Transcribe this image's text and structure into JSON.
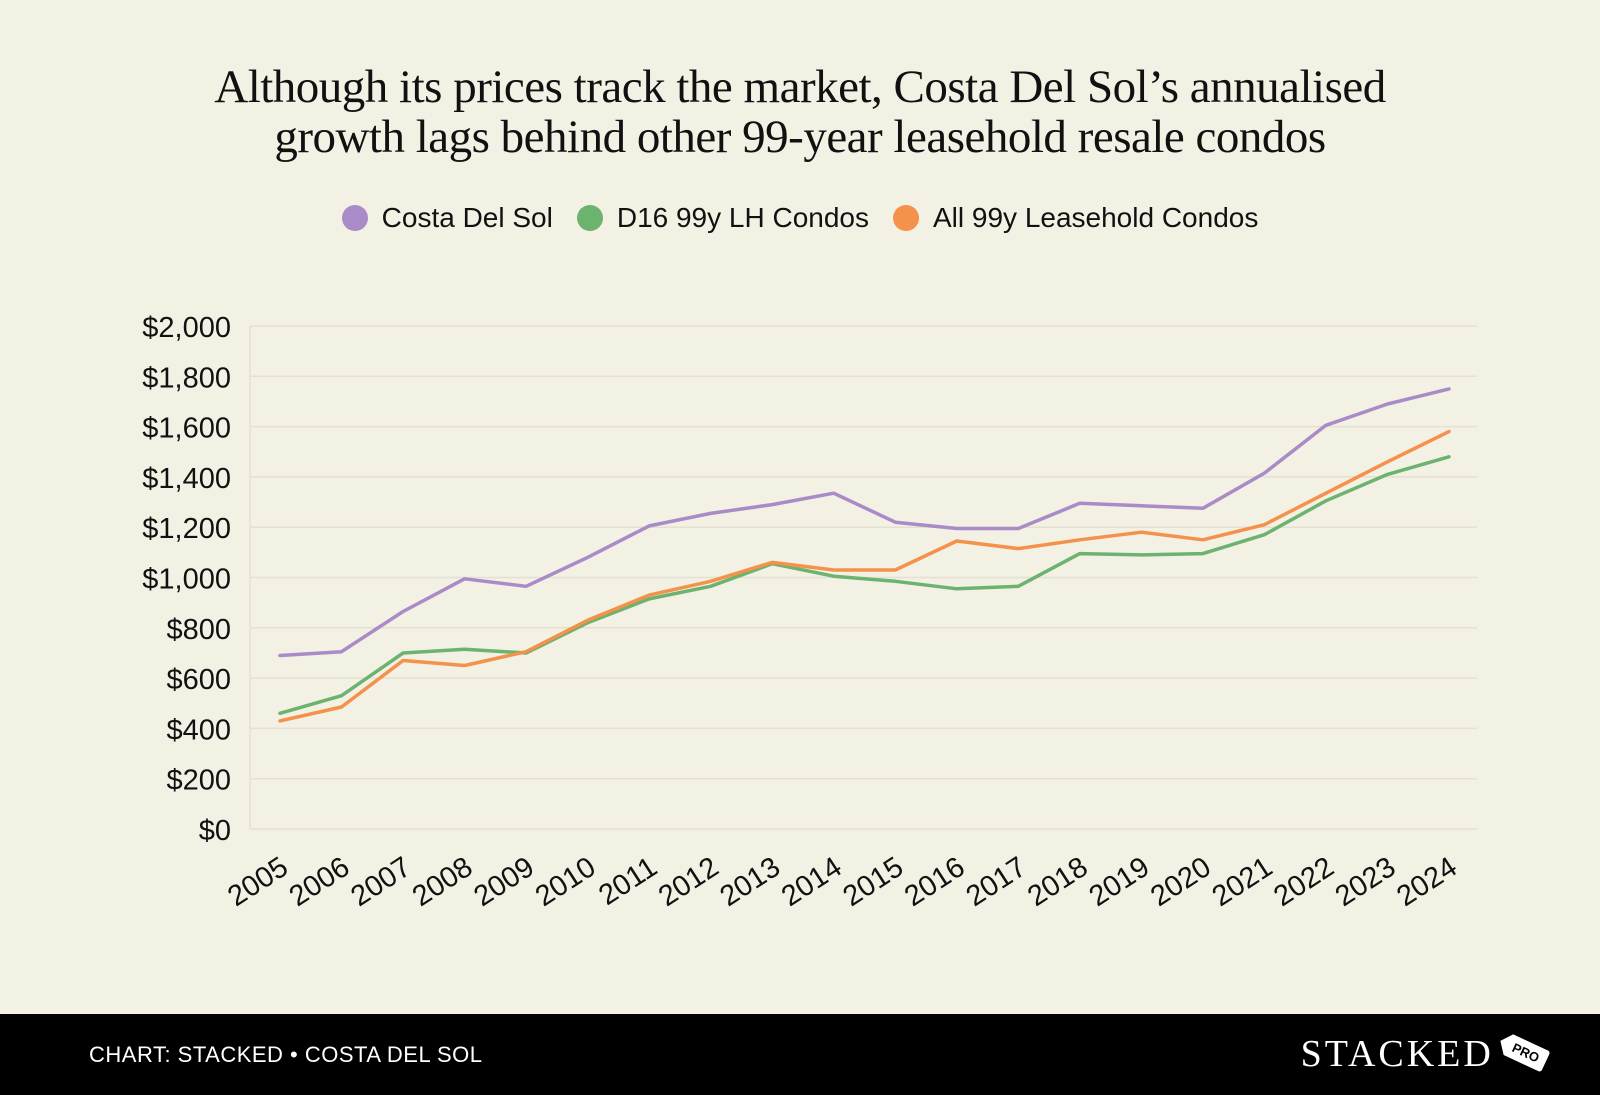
{
  "chart_data": {
    "type": "line",
    "title_lines": [
      "Although its prices track the market, Costa Del Sol’s annualised",
      "growth lags behind other 99-year leasehold resale condos"
    ],
    "categories": [
      "2005",
      "2006",
      "2007",
      "2008",
      "2009",
      "2010",
      "2011",
      "2012",
      "2013",
      "2014",
      "2015",
      "2016",
      "2017",
      "2018",
      "2019",
      "2020",
      "2021",
      "2022",
      "2023",
      "2024"
    ],
    "ylim": [
      0,
      2000
    ],
    "yticks": [
      "$0",
      "$200",
      "$400",
      "$600",
      "$800",
      "$1,000",
      "$1,200",
      "$1,400",
      "$1,600",
      "$1,800",
      "$2,000"
    ],
    "ytick_values": [
      0,
      200,
      400,
      600,
      800,
      1000,
      1200,
      1400,
      1600,
      1800,
      2000
    ],
    "grid": true,
    "legend_position": "top-center",
    "series": [
      {
        "name": "Costa Del Sol",
        "color": "#a98bc8",
        "values": [
          690,
          705,
          865,
          995,
          965,
          1080,
          1205,
          1255,
          1290,
          1335,
          1220,
          1195,
          1195,
          1295,
          1285,
          1275,
          1415,
          1605,
          1690,
          1750
        ]
      },
      {
        "name": "D16 99y LH Condos",
        "color": "#6cb36f",
        "values": [
          460,
          530,
          700,
          715,
          700,
          820,
          915,
          965,
          1055,
          1005,
          985,
          955,
          965,
          1095,
          1090,
          1095,
          1170,
          1305,
          1410,
          1480
        ]
      },
      {
        "name": "All 99y Leasehold Condos",
        "color": "#f4914a",
        "values": [
          430,
          485,
          670,
          650,
          705,
          830,
          930,
          985,
          1060,
          1030,
          1030,
          1145,
          1115,
          1150,
          1180,
          1150,
          1210,
          1335,
          1460,
          1580
        ]
      }
    ]
  },
  "footer": {
    "source": "CHART: STACKED • COSTA DEL SOL",
    "brand": "STACKED",
    "brand_tag": "PRO"
  }
}
